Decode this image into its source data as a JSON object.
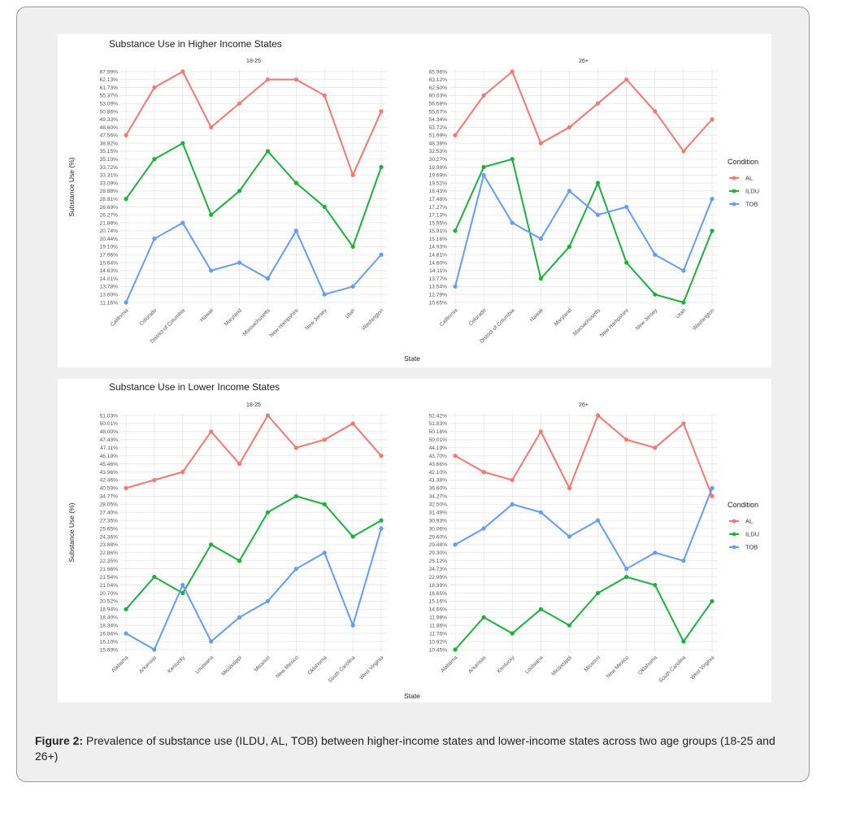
{
  "caption": {
    "label": "Figure 2:",
    "text": "Prevalence of substance use (ILDU, AL, TOB) between higher-income states and lower-income states across two age groups (18-25 and 26+)"
  },
  "legend": {
    "title": "Condition",
    "items": [
      {
        "label": "AL",
        "color": "#f8766d"
      },
      {
        "label": "ILDU",
        "color": "#1ab33a"
      },
      {
        "label": "TOB",
        "color": "#619cff"
      }
    ]
  },
  "chart_data": [
    {
      "type": "line",
      "title": "Substance Use in Higher Income States",
      "xlabel": "State",
      "ylabel": "Substance Use (%)",
      "facets": [
        {
          "name": "18-25",
          "categories": [
            "California",
            "Colorado",
            "District of Columbia",
            "Hawaii",
            "Maryland",
            "Massachusetts",
            "New Hampshire",
            "New Jersey",
            "Utah",
            "Washington"
          ],
          "yticks": [
            "11.16%",
            "13.60%",
            "13.78%",
            "14.01%",
            "14.63%",
            "15.64%",
            "17.96%",
            "19.10%",
            "20.44%",
            "20.74%",
            "21.88%",
            "26.27%",
            "26.69%",
            "28.81%",
            "28.88%",
            "33.09%",
            "33.31%",
            "33.72%",
            "35.10%",
            "35.15%",
            "38.82%",
            "47.56%",
            "48.60%",
            "49.33%",
            "50.86%",
            "53.09%",
            "55.37%",
            "61.73%",
            "62.13%",
            "67.99%"
          ],
          "series": [
            {
              "name": "AL",
              "values": [
                "47.56%",
                "61.73%",
                "67.99%",
                "48.60%",
                "53.09%",
                "62.13%",
                "62.13%",
                "55.37%",
                "33.31%",
                "50.86%"
              ]
            },
            {
              "name": "ILDU",
              "values": [
                "28.81%",
                "35.10%",
                "38.82%",
                "26.27%",
                "28.88%",
                "35.15%",
                "33.09%",
                "26.69%",
                "19.10%",
                "33.72%"
              ]
            },
            {
              "name": "TOB",
              "values": [
                "11.16%",
                "20.44%",
                "21.88%",
                "14.63%",
                "15.64%",
                "14.01%",
                "20.74%",
                "13.60%",
                "13.78%",
                "17.96%"
              ]
            }
          ]
        },
        {
          "name": "26+",
          "categories": [
            "California",
            "Colorado",
            "District of Columbia",
            "Hawaii",
            "Maryland",
            "Massachusetts",
            "New Hampshire",
            "New Jersey",
            "Utah",
            "Washington"
          ],
          "yticks": [
            "10.65%",
            "12.79%",
            "13.54%",
            "13.77%",
            "14.11%",
            "14.60%",
            "14.81%",
            "14.93%",
            "15.16%",
            "15.91%",
            "15.95%",
            "17.13%",
            "17.27%",
            "17.48%",
            "18.43%",
            "19.52%",
            "19.69%",
            "19.98%",
            "20.27%",
            "32.53%",
            "48.38%",
            "51.99%",
            "53.72%",
            "54.34%",
            "55.67%",
            "56.68%",
            "60.03%",
            "62.50%",
            "63.12%",
            "65.96%"
          ],
          "series": [
            {
              "name": "AL",
              "values": [
                "51.99%",
                "60.03%",
                "65.96%",
                "48.38%",
                "53.72%",
                "56.68%",
                "63.12%",
                "55.67%",
                "32.53%",
                "54.34%"
              ]
            },
            {
              "name": "ILDU",
              "values": [
                "15.91%",
                "19.98%",
                "20.27%",
                "13.77%",
                "14.93%",
                "19.52%",
                "14.60%",
                "12.79%",
                "10.65%",
                "15.91%"
              ]
            },
            {
              "name": "TOB",
              "values": [
                "13.54%",
                "19.69%",
                "15.95%",
                "15.16%",
                "18.43%",
                "17.13%",
                "17.27%",
                "14.81%",
                "14.11%",
                "17.48%"
              ]
            }
          ]
        }
      ]
    },
    {
      "type": "line",
      "title": "Substance Use in Lower Income States",
      "xlabel": "State",
      "ylabel": "Substance Use (%)",
      "facets": [
        {
          "name": "18-25",
          "categories": [
            "Alabama",
            "Arkansas",
            "Kentucky",
            "Louisiana",
            "Mississippi",
            "Missouri",
            "New Mexico",
            "Oklahoma",
            "South Carolina",
            "West Virginia"
          ],
          "yticks": [
            "15.69%",
            "16.10%",
            "16.84%",
            "18.34%",
            "18.40%",
            "18.94%",
            "20.52%",
            "20.70%",
            "21.04%",
            "21.54%",
            "21.66%",
            "22.35%",
            "22.86%",
            "23.88%",
            "24.36%",
            "25.65%",
            "27.35%",
            "27.40%",
            "28.05%",
            "34.77%",
            "40.59%",
            "42.46%",
            "43.96%",
            "45.46%",
            "46.19%",
            "47.11%",
            "47.43%",
            "48.00%",
            "50.01%",
            "51.03%"
          ],
          "series": [
            {
              "name": "AL",
              "values": [
                "40.59%",
                "42.46%",
                "43.96%",
                "48.00%",
                "45.46%",
                "51.03%",
                "47.11%",
                "47.43%",
                "50.01%",
                "46.19%"
              ]
            },
            {
              "name": "ILDU",
              "values": [
                "18.94%",
                "21.54%",
                "20.70%",
                "23.88%",
                "22.35%",
                "27.40%",
                "34.77%",
                "28.05%",
                "24.36%",
                "27.35%"
              ]
            },
            {
              "name": "TOB",
              "values": [
                "16.84%",
                "15.69%",
                "21.04%",
                "16.10%",
                "18.40%",
                "20.52%",
                "21.66%",
                "22.86%",
                "18.34%",
                "25.65%"
              ]
            }
          ]
        },
        {
          "name": "26+",
          "categories": [
            "Alabama",
            "Arkansas",
            "Kentucky",
            "Louisiana",
            "Mississippi",
            "Missouri",
            "New Mexico",
            "Oklahoma",
            "South Carolina",
            "West Virginia"
          ],
          "yticks": [
            "10.45%",
            "10.92%",
            "11.76%",
            "11.86%",
            "11.98%",
            "14.66%",
            "15.16%",
            "16.65%",
            "18.39%",
            "22.99%",
            "24.73%",
            "25.12%",
            "29.30%",
            "29.48%",
            "29.60%",
            "30.06%",
            "30.93%",
            "31.49%",
            "32.50%",
            "34.27%",
            "36.60%",
            "41.38%",
            "42.10%",
            "43.66%",
            "43.70%",
            "44.19%",
            "50.01%",
            "50.18%",
            "51.83%",
            "52.42%"
          ],
          "series": [
            {
              "name": "AL",
              "values": [
                "43.70%",
                "42.10%",
                "41.38%",
                "50.18%",
                "36.60%",
                "52.42%",
                "50.01%",
                "44.19%",
                "51.83%",
                "34.27%"
              ]
            },
            {
              "name": "ILDU",
              "values": [
                "10.45%",
                "11.98%",
                "11.76%",
                "14.66%",
                "11.86%",
                "16.65%",
                "22.99%",
                "18.39%",
                "10.92%",
                "15.16%"
              ]
            },
            {
              "name": "TOB",
              "values": [
                "29.48%",
                "30.06%",
                "32.50%",
                "31.49%",
                "29.60%",
                "30.93%",
                "24.73%",
                "29.30%",
                "25.12%",
                "36.60%"
              ]
            }
          ]
        }
      ]
    }
  ]
}
